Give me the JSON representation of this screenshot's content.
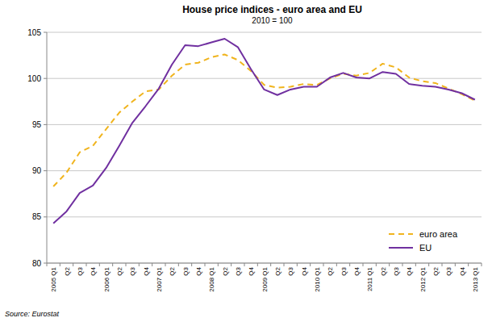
{
  "chart_data": {
    "type": "line",
    "title": "House price indices - euro area and EU",
    "subtitle": "2010 = 100",
    "source": "Source: Eurostat",
    "categories": [
      "2005 Q1",
      "Q2",
      "Q3",
      "Q4",
      "2006 Q1",
      "Q2",
      "Q3",
      "Q4",
      "2007 Q1",
      "Q2",
      "Q3",
      "Q4",
      "2008 Q1",
      "Q2",
      "Q3",
      "Q4",
      "2009 Q1",
      "Q2",
      "Q3",
      "Q4",
      "2010 Q1",
      "Q2",
      "Q3",
      "Q4",
      "2011 Q1",
      "Q2",
      "Q3",
      "Q4",
      "2012 Q1",
      "Q2",
      "Q3",
      "Q4",
      "2013 Q1"
    ],
    "series": [
      {
        "name": "euro area",
        "color": "#f0b41e",
        "line_style": "dashed",
        "values": [
          88.3,
          89.8,
          92.0,
          92.7,
          94.5,
          96.3,
          97.5,
          98.6,
          98.8,
          100.3,
          101.5,
          101.7,
          102.3,
          102.6,
          102.0,
          100.8,
          99.3,
          99.0,
          99.1,
          99.4,
          99.3,
          100.0,
          100.5,
          100.3,
          100.6,
          101.6,
          101.2,
          100.1,
          99.7,
          99.5,
          98.9,
          98.3,
          97.6
        ]
      },
      {
        "name": "EU",
        "color": "#7030a0",
        "line_style": "solid",
        "values": [
          84.3,
          85.6,
          87.6,
          88.4,
          90.3,
          92.7,
          95.2,
          97.0,
          98.9,
          101.5,
          103.6,
          103.5,
          103.9,
          104.3,
          103.4,
          101.0,
          98.8,
          98.2,
          98.8,
          99.1,
          99.1,
          100.1,
          100.6,
          100.1,
          100.0,
          100.7,
          100.5,
          99.4,
          99.2,
          99.1,
          98.8,
          98.4,
          97.7
        ]
      }
    ],
    "ylim": [
      80,
      105
    ],
    "yticks": [
      80,
      85,
      90,
      95,
      100,
      105
    ],
    "grid": true,
    "legend": "lower right"
  }
}
